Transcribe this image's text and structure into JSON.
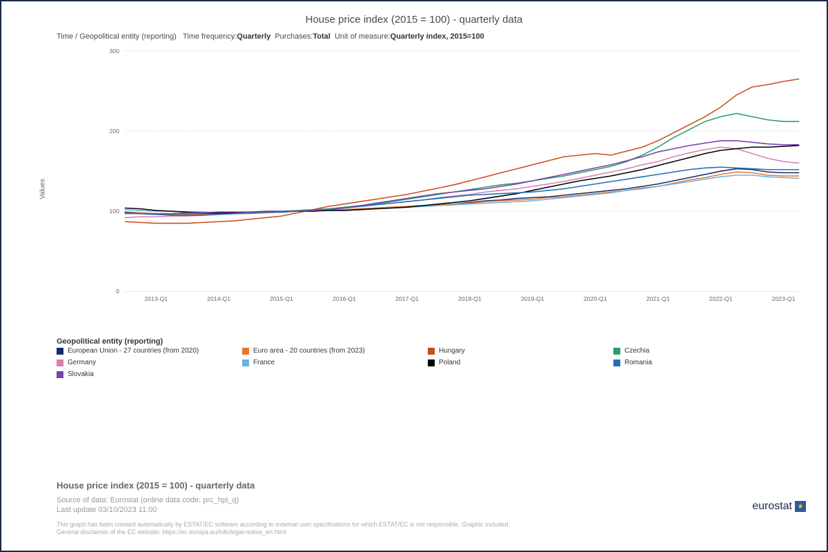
{
  "title": "House price index (2015 = 100) - quarterly data",
  "subtitle_prefix": "Time / Geopolitical entity (reporting)",
  "subtitle_fields": [
    {
      "label": "Time frequency:",
      "value": "Quarterly"
    },
    {
      "label": "Purchases:",
      "value": "Total"
    },
    {
      "label": "Unit of measure:",
      "value": "Quarterly index, 2015=100"
    }
  ],
  "chart": {
    "type": "line",
    "ylabel": "Values",
    "ylim": [
      0,
      300
    ],
    "yticks": [
      0,
      100,
      200,
      300
    ],
    "xcategories": [
      "2012-Q3",
      "2012-Q4",
      "2013-Q1",
      "2013-Q2",
      "2013-Q3",
      "2013-Q4",
      "2014-Q1",
      "2014-Q2",
      "2014-Q3",
      "2014-Q4",
      "2015-Q1",
      "2015-Q2",
      "2015-Q3",
      "2015-Q4",
      "2016-Q1",
      "2016-Q2",
      "2016-Q3",
      "2016-Q4",
      "2017-Q1",
      "2017-Q2",
      "2017-Q3",
      "2017-Q4",
      "2018-Q1",
      "2018-Q2",
      "2018-Q3",
      "2018-Q4",
      "2019-Q1",
      "2019-Q2",
      "2019-Q3",
      "2019-Q4",
      "2020-Q1",
      "2020-Q2",
      "2020-Q3",
      "2020-Q4",
      "2021-Q1",
      "2021-Q2",
      "2021-Q3",
      "2021-Q4",
      "2022-Q1",
      "2022-Q2",
      "2022-Q3",
      "2022-Q4",
      "2023-Q1",
      "2023-Q2"
    ],
    "xtick_labels": [
      "2013-Q1",
      "2014-Q1",
      "2015-Q1",
      "2016-Q1",
      "2017-Q1",
      "2018-Q1",
      "2019-Q1",
      "2020-Q1",
      "2021-Q1",
      "2022-Q1",
      "2023-Q1"
    ],
    "xtick_indices": [
      2,
      6,
      10,
      14,
      18,
      22,
      26,
      30,
      34,
      38,
      42
    ],
    "background_color": "#ffffff",
    "grid_color": "#888888",
    "line_width": 1.6,
    "series": [
      {
        "name": "European Union - 27 countries (from 2020)",
        "color": "#1a2a6c",
        "values": [
          98,
          97,
          96,
          96,
          97,
          97,
          97,
          98,
          99,
          99,
          99,
          100,
          101,
          101,
          102,
          103,
          104,
          105,
          106,
          107,
          108,
          109,
          111,
          113,
          114,
          116,
          117,
          118,
          120,
          122,
          124,
          126,
          128,
          131,
          134,
          138,
          142,
          146,
          150,
          153,
          152,
          149,
          148,
          148
        ]
      },
      {
        "name": "Euro area - 20 countries (from 2023)",
        "color": "#e8762c",
        "values": [
          99,
          98,
          97,
          96,
          96,
          96,
          96,
          97,
          97,
          98,
          99,
          100,
          101,
          101,
          102,
          103,
          104,
          105,
          106,
          107,
          108,
          109,
          110,
          112,
          113,
          114,
          115,
          117,
          118,
          120,
          122,
          124,
          126,
          129,
          131,
          135,
          139,
          142,
          146,
          149,
          148,
          145,
          144,
          144
        ]
      },
      {
        "name": "Hungary",
        "color": "#c94d1c",
        "values": [
          87,
          86,
          85,
          85,
          85,
          86,
          87,
          88,
          90,
          92,
          94,
          98,
          102,
          106,
          109,
          112,
          115,
          118,
          121,
          125,
          129,
          133,
          138,
          143,
          148,
          153,
          158,
          163,
          168,
          170,
          172,
          170,
          175,
          180,
          188,
          198,
          208,
          218,
          230,
          245,
          255,
          258,
          262,
          265
        ]
      },
      {
        "name": "Czechia",
        "color": "#2a9d6a",
        "values": [
          97,
          97,
          97,
          97,
          97,
          98,
          98,
          99,
          99,
          100,
          100,
          101,
          102,
          103,
          105,
          107,
          109,
          112,
          115,
          118,
          121,
          124,
          127,
          130,
          133,
          135,
          138,
          141,
          144,
          148,
          152,
          156,
          162,
          170,
          180,
          192,
          202,
          212,
          218,
          222,
          218,
          214,
          212,
          212
        ]
      },
      {
        "name": "Germany",
        "color": "#d87fb0",
        "values": [
          92,
          93,
          93,
          94,
          94,
          95,
          96,
          97,
          98,
          99,
          99,
          100,
          101,
          102,
          104,
          106,
          108,
          110,
          112,
          114,
          117,
          119,
          121,
          124,
          126,
          128,
          131,
          134,
          137,
          141,
          145,
          149,
          153,
          158,
          162,
          168,
          173,
          177,
          180,
          178,
          172,
          166,
          162,
          160
        ]
      },
      {
        "name": "France",
        "color": "#6ab3e0",
        "values": [
          102,
          101,
          100,
          100,
          99,
          99,
          98,
          98,
          98,
          99,
          99,
          100,
          100,
          101,
          101,
          102,
          103,
          104,
          105,
          106,
          107,
          108,
          109,
          110,
          111,
          112,
          113,
          115,
          117,
          119,
          121,
          123,
          126,
          128,
          131,
          134,
          137,
          140,
          143,
          145,
          145,
          143,
          142,
          141
        ]
      },
      {
        "name": "Poland",
        "color": "#000000",
        "values": [
          104,
          103,
          101,
          100,
          99,
          98,
          98,
          98,
          99,
          99,
          99,
          100,
          100,
          101,
          101,
          102,
          103,
          104,
          105,
          107,
          109,
          111,
          113,
          116,
          119,
          122,
          126,
          130,
          134,
          138,
          141,
          144,
          148,
          152,
          157,
          162,
          167,
          172,
          176,
          178,
          180,
          180,
          181,
          182
        ]
      },
      {
        "name": "Romania",
        "color": "#1f6fb5",
        "values": [
          99,
          97,
          96,
          95,
          95,
          95,
          96,
          97,
          98,
          99,
          99,
          100,
          101,
          102,
          104,
          106,
          108,
          110,
          112,
          114,
          116,
          118,
          120,
          121,
          122,
          123,
          124,
          126,
          128,
          131,
          134,
          137,
          140,
          143,
          146,
          149,
          152,
          154,
          155,
          154,
          153,
          152,
          152,
          152
        ]
      },
      {
        "name": "Slovakia",
        "color": "#7a3fb0",
        "values": [
          98,
          97,
          97,
          97,
          98,
          98,
          99,
          99,
          99,
          100,
          100,
          100,
          101,
          102,
          104,
          107,
          110,
          113,
          116,
          119,
          122,
          124,
          126,
          128,
          131,
          134,
          138,
          142,
          146,
          150,
          154,
          158,
          163,
          168,
          174,
          178,
          182,
          185,
          188,
          188,
          186,
          184,
          183,
          183
        ]
      }
    ]
  },
  "legend_title": "Geopolitical entity (reporting)",
  "footer": {
    "title": "House price index (2015 = 100) - quarterly data",
    "source": "Source of data: Eurostat (online data code: prc_hpi_q)",
    "updated": "Last update 03/10/2023 11:00",
    "disclaimer1": "This graph has been created automatically by ESTAT/EC software according to external user specifications for which ESTAT/EC is not responsible. Graphic included.",
    "disclaimer2": "General disclaimer of the EC website: https://ec.europa.eu/info/legal-notice_en.html"
  },
  "logo_text": "eurostat"
}
